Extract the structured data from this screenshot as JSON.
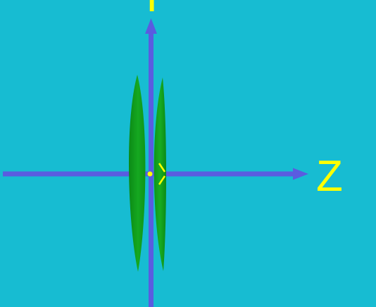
{
  "scene": {
    "background_color": "#17bcd2",
    "axis_color": "#5a5ce0",
    "label_color": "#ffff00",
    "lens_color": "#13a51f",
    "labels": {
      "z_axis": "Z",
      "y_axis": "Y"
    }
  }
}
